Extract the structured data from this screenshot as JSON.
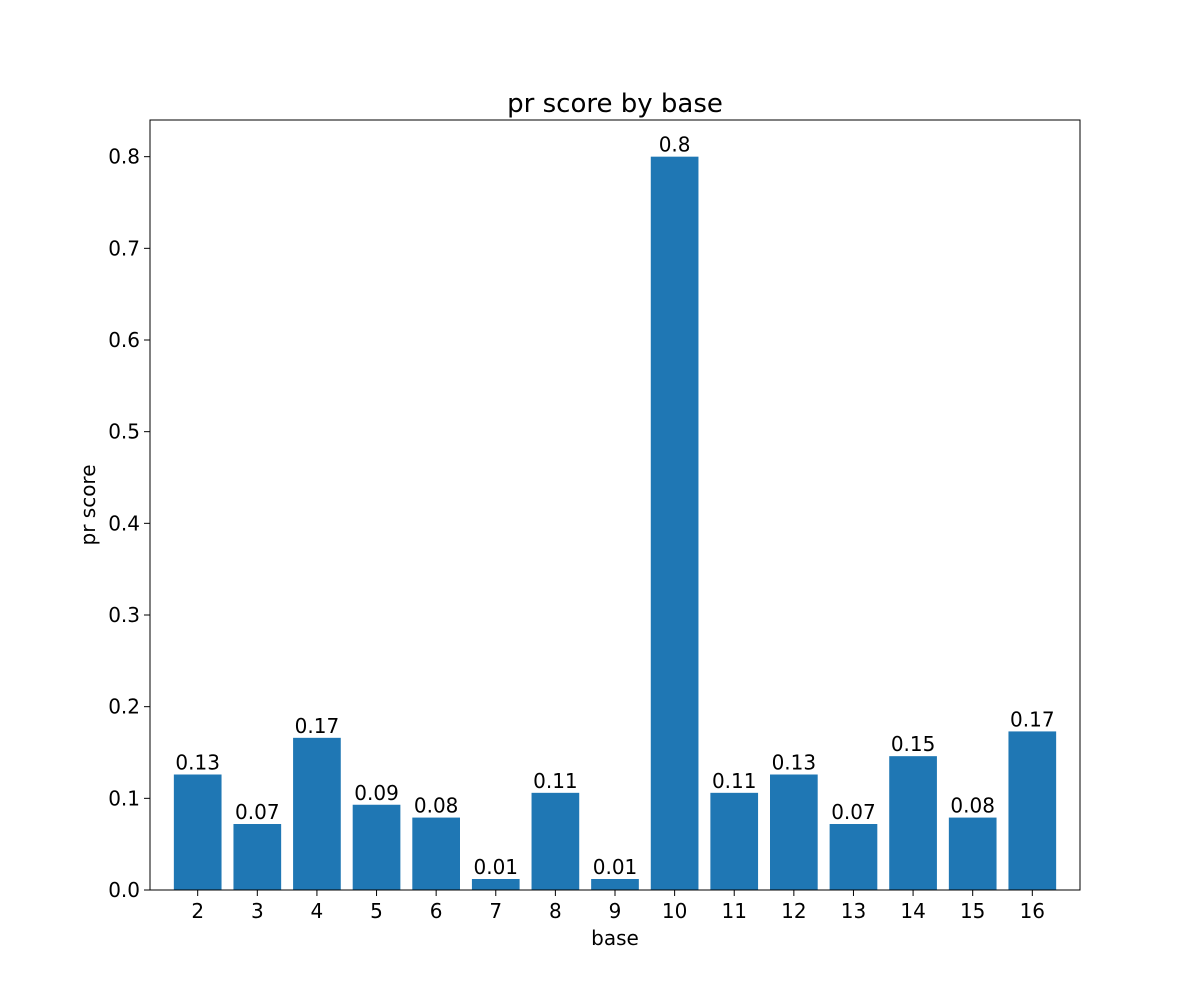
{
  "chart_data": {
    "type": "bar",
    "title": "pr score by base",
    "xlabel": "base",
    "ylabel": "pr score",
    "categories": [
      "2",
      "3",
      "4",
      "5",
      "6",
      "7",
      "8",
      "9",
      "10",
      "11",
      "12",
      "13",
      "14",
      "15",
      "16"
    ],
    "values": [
      0.126,
      0.072,
      0.166,
      0.093,
      0.079,
      0.012,
      0.106,
      0.012,
      0.8,
      0.106,
      0.126,
      0.072,
      0.146,
      0.079,
      0.173
    ],
    "data_labels": [
      "0.13",
      "0.07",
      "0.17",
      "0.09",
      "0.08",
      "0.01",
      "0.11",
      "0.01",
      "0.8",
      "0.11",
      "0.13",
      "0.07",
      "0.15",
      "0.08",
      "0.17"
    ],
    "ylim": [
      0,
      0.84
    ],
    "yticks": [
      0.0,
      0.1,
      0.2,
      0.3,
      0.4,
      0.5,
      0.6,
      0.7,
      0.8
    ],
    "ytick_labels": [
      "0.0",
      "0.1",
      "0.2",
      "0.3",
      "0.4",
      "0.5",
      "0.6",
      "0.7",
      "0.8"
    ],
    "grid": false,
    "bar_color": "#1f77b4"
  }
}
